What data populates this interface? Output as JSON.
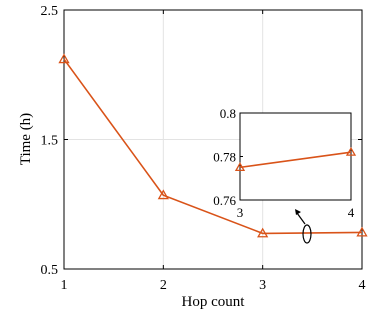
{
  "chart_data": {
    "type": "line",
    "title": "",
    "xlabel": "Hop count",
    "ylabel": "Time (h)",
    "xlim": [
      1,
      4
    ],
    "ylim": [
      0.5,
      2.5
    ],
    "xticks": [
      1,
      2,
      3,
      4
    ],
    "xtick_labels": [
      "1",
      "2",
      "3",
      "4"
    ],
    "yticks": [
      0.5,
      1.5,
      2.5
    ],
    "ytick_labels": [
      "0.5",
      "1.5",
      "2.5"
    ],
    "grid": true,
    "series": [
      {
        "x": [
          1,
          2,
          3,
          4
        ],
        "y": [
          2.12,
          1.07,
          0.775,
          0.782
        ],
        "color": "#d95319",
        "marker": "triangle"
      }
    ],
    "inset": {
      "xlim": [
        3,
        4
      ],
      "ylim": [
        0.76,
        0.8
      ],
      "xticks": [
        3,
        4
      ],
      "xtick_labels": [
        "3",
        "4"
      ],
      "yticks": [
        0.76,
        0.78,
        0.8
      ],
      "ytick_labels": [
        "0.76",
        "0.78",
        "0.8"
      ],
      "series": [
        {
          "x": [
            3,
            4
          ],
          "y": [
            0.775,
            0.782
          ],
          "color": "#d95319",
          "marker": "triangle"
        }
      ]
    }
  }
}
